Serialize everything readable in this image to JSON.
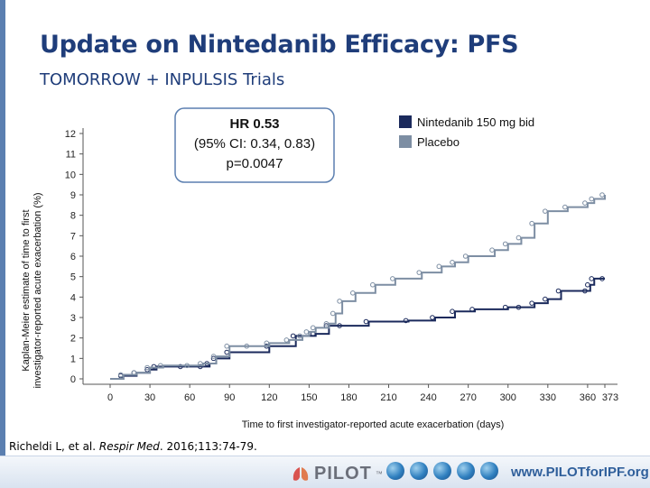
{
  "slide": {
    "title": "Update on Nintedanib Efficacy: PFS",
    "subtitle": "TOMORROW + INPULSIS Trials",
    "citation_author": "Richeldi L, et al. ",
    "citation_journal": "Respir Med",
    "citation_rest": ". 2016;113:74-79."
  },
  "footer": {
    "logo_text": "PILOT",
    "logo_tm": "™",
    "url": "www.PILOTforIPF.org"
  },
  "colors": {
    "nintedanib": "#1b2a5c",
    "placebo": "#7d8ea3",
    "title": "#1f3d7a"
  },
  "chart_data": {
    "type": "line",
    "xlabel": "Time to first investigator-reported acute exacerbation (days)",
    "ylabel_line1": "Kaplan-Meier estimate of time to first",
    "ylabel_line2": "investigator-reported acute exacerbation (%)",
    "x_ticks": [
      0,
      30,
      60,
      90,
      120,
      150,
      180,
      210,
      240,
      270,
      300,
      330,
      360,
      373
    ],
    "y_ticks": [
      0,
      1,
      2,
      3,
      4,
      5,
      6,
      7,
      8,
      9,
      10,
      11,
      12
    ],
    "xlim": [
      0,
      373
    ],
    "ylim": [
      0,
      12
    ],
    "grid": false,
    "legend_position": "top-right",
    "annotation": {
      "line1": "HR 0.53",
      "line2": "(95% CI: 0.34, 0.83)",
      "line3": "p=0.0047"
    },
    "series": [
      {
        "name": "Nintedanib 150 mg bid",
        "color": "#1b2a5c",
        "points": [
          [
            0,
            0
          ],
          [
            10,
            0.15
          ],
          [
            20,
            0.3
          ],
          [
            30,
            0.45
          ],
          [
            35,
            0.6
          ],
          [
            55,
            0.6
          ],
          [
            70,
            0.6
          ],
          [
            75,
            0.75
          ],
          [
            80,
            1.0
          ],
          [
            90,
            1.3
          ],
          [
            120,
            1.6
          ],
          [
            140,
            2.1
          ],
          [
            155,
            2.2
          ],
          [
            165,
            2.6
          ],
          [
            175,
            2.6
          ],
          [
            195,
            2.8
          ],
          [
            225,
            2.85
          ],
          [
            245,
            3.0
          ],
          [
            260,
            3.3
          ],
          [
            275,
            3.4
          ],
          [
            300,
            3.5
          ],
          [
            310,
            3.5
          ],
          [
            320,
            3.7
          ],
          [
            330,
            3.9
          ],
          [
            340,
            4.3
          ],
          [
            360,
            4.3
          ],
          [
            362,
            4.6
          ],
          [
            365,
            4.9
          ],
          [
            373,
            4.9
          ]
        ]
      },
      {
        "name": "Placebo",
        "color": "#7d8ea3",
        "points": [
          [
            0,
            0
          ],
          [
            10,
            0.2
          ],
          [
            20,
            0.3
          ],
          [
            30,
            0.55
          ],
          [
            40,
            0.65
          ],
          [
            60,
            0.65
          ],
          [
            70,
            0.75
          ],
          [
            80,
            1.1
          ],
          [
            90,
            1.6
          ],
          [
            105,
            1.6
          ],
          [
            120,
            1.75
          ],
          [
            135,
            1.9
          ],
          [
            145,
            2.1
          ],
          [
            150,
            2.3
          ],
          [
            155,
            2.5
          ],
          [
            165,
            2.7
          ],
          [
            170,
            3.2
          ],
          [
            175,
            3.8
          ],
          [
            185,
            4.2
          ],
          [
            200,
            4.6
          ],
          [
            215,
            4.9
          ],
          [
            235,
            5.2
          ],
          [
            250,
            5.5
          ],
          [
            260,
            5.7
          ],
          [
            270,
            6.0
          ],
          [
            290,
            6.3
          ],
          [
            300,
            6.6
          ],
          [
            310,
            6.9
          ],
          [
            320,
            7.6
          ],
          [
            330,
            8.2
          ],
          [
            345,
            8.4
          ],
          [
            360,
            8.6
          ],
          [
            365,
            8.8
          ],
          [
            373,
            9.0
          ]
        ]
      }
    ]
  }
}
